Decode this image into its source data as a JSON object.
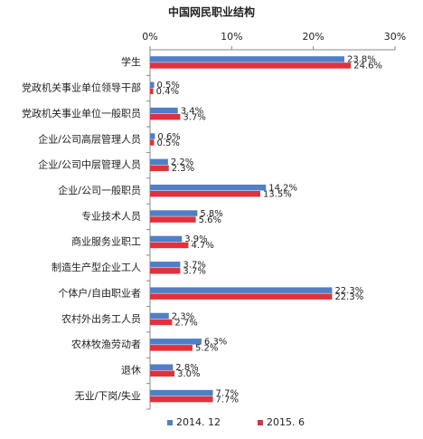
{
  "chart_data": {
    "type": "hbar",
    "title": "中国网民职业结构",
    "categories": [
      "学生",
      "党政机关事业单位领导干部",
      "党政机关事业单位一般职员",
      "企业/公司高层管理人员",
      "企业/公司中层管理人员",
      "企业/公司一般职员",
      "专业技术人员",
      "商业服务业职工",
      "制造生产型企业工人",
      "个体户/自由职业者",
      "农村外出务工人员",
      "农林牧渔劳动者",
      "退休",
      "无业/下岗/失业"
    ],
    "series": [
      {
        "name": "2014. 12",
        "color": "#4f7fc6",
        "values": [
          23.8,
          0.5,
          3.4,
          0.6,
          2.2,
          14.2,
          5.8,
          3.9,
          3.7,
          22.3,
          2.3,
          6.3,
          2.8,
          7.7
        ],
        "value_labels": [
          "23.8%",
          "0.5%",
          "3.4%",
          "0.6%",
          "2.2%",
          "14.2%",
          "5.8%",
          "3.9%",
          "3.7%",
          "22.3%",
          "2.3%",
          "6.3%",
          "2.8%",
          "7.7%"
        ]
      },
      {
        "name": "2015. 6",
        "color": "#e0323c",
        "values": [
          24.6,
          0.4,
          3.7,
          0.5,
          2.3,
          13.5,
          5.6,
          4.7,
          3.7,
          22.3,
          2.7,
          5.2,
          3.0,
          7.7
        ],
        "value_labels": [
          "24.6%",
          "0.4%",
          "3.7%",
          "0.5%",
          "2.3%",
          "13.5%",
          "5.6%",
          "4.7%",
          "3.7%",
          "22.3%",
          "2.7%",
          "5.2%",
          "3.0%",
          "7.7%"
        ]
      }
    ],
    "xlim": [
      0,
      30
    ],
    "xticks": [
      {
        "value": 0,
        "label": "0%"
      },
      {
        "value": 10,
        "label": "10%"
      },
      {
        "value": 20,
        "label": "20%"
      },
      {
        "value": 30,
        "label": "30%"
      }
    ],
    "grid": false,
    "legend": "bottom"
  }
}
